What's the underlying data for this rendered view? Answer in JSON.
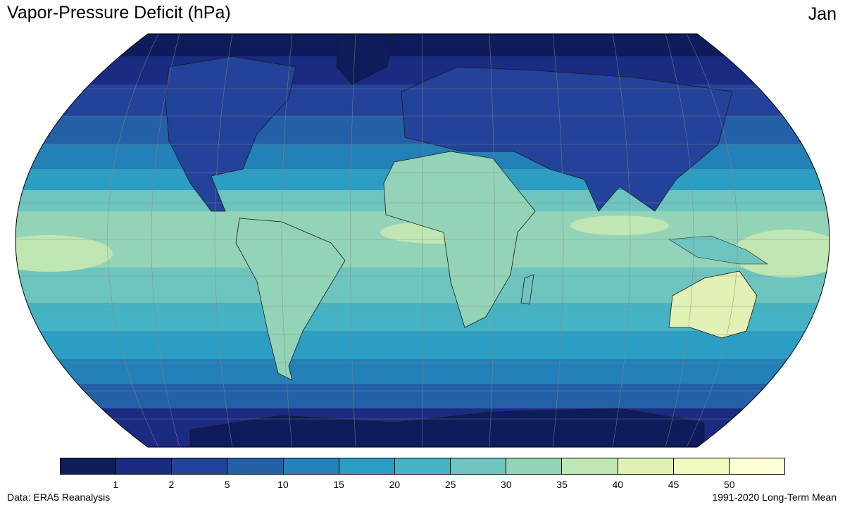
{
  "header": {
    "title": "Vapor-Pressure Deficit (hPa)",
    "month": "Jan"
  },
  "colorbar": {
    "colors": [
      "#0e1c5c",
      "#1c2b82",
      "#23439a",
      "#2460a8",
      "#2381b7",
      "#2c9ec3",
      "#45b3c3",
      "#6ec5c0",
      "#93d3b8",
      "#c0e6b4",
      "#e1f2b4",
      "#f2f9c1",
      "#ffffd7"
    ],
    "ticks": [
      "1",
      "2",
      "5",
      "10",
      "15",
      "20",
      "25",
      "30",
      "35",
      "40",
      "45",
      "50"
    ]
  },
  "footer": {
    "source": "Data: ERA5 Reanalysis",
    "period": "1991-2020 Long-Term Mean"
  }
}
